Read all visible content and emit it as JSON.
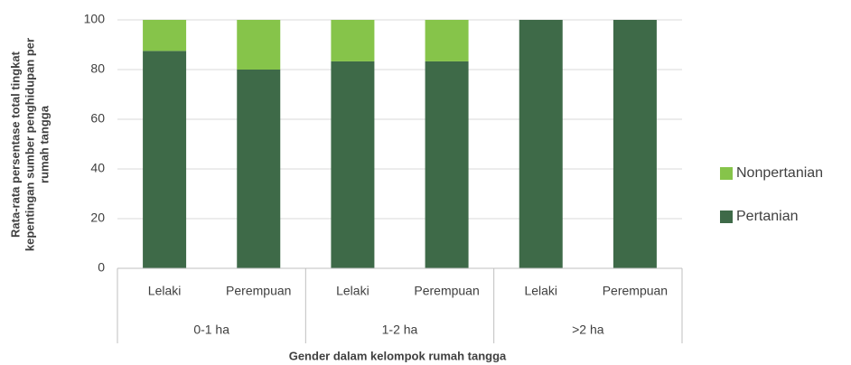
{
  "chart_data": {
    "type": "stacked_bar",
    "ylabel": [
      "Rata-rata persentase total tingkat",
      "kepentingan sumber penghidupan per",
      "rumah tangga"
    ],
    "xlabel": "Gender dalam kelompok rumah tangga",
    "categories": [
      "Lelaki",
      "Perempuan",
      "Lelaki",
      "Perempuan",
      "Lelaki",
      "Perempuan"
    ],
    "groups": [
      "0-1 ha",
      "1-2 ha",
      ">2 ha"
    ],
    "series": [
      {
        "name": "Pertanian",
        "color": "#3e6a48",
        "values": [
          87.5,
          80,
          83.3,
          83.3,
          100,
          100
        ]
      },
      {
        "name": "Nonpertanian",
        "color": "#86c44a",
        "values": [
          12.5,
          20,
          16.7,
          16.7,
          0,
          0
        ]
      }
    ],
    "ylim": [
      0,
      100
    ],
    "yticks": [
      0,
      20,
      40,
      60,
      80,
      100
    ],
    "grid": true,
    "legend": "right"
  }
}
